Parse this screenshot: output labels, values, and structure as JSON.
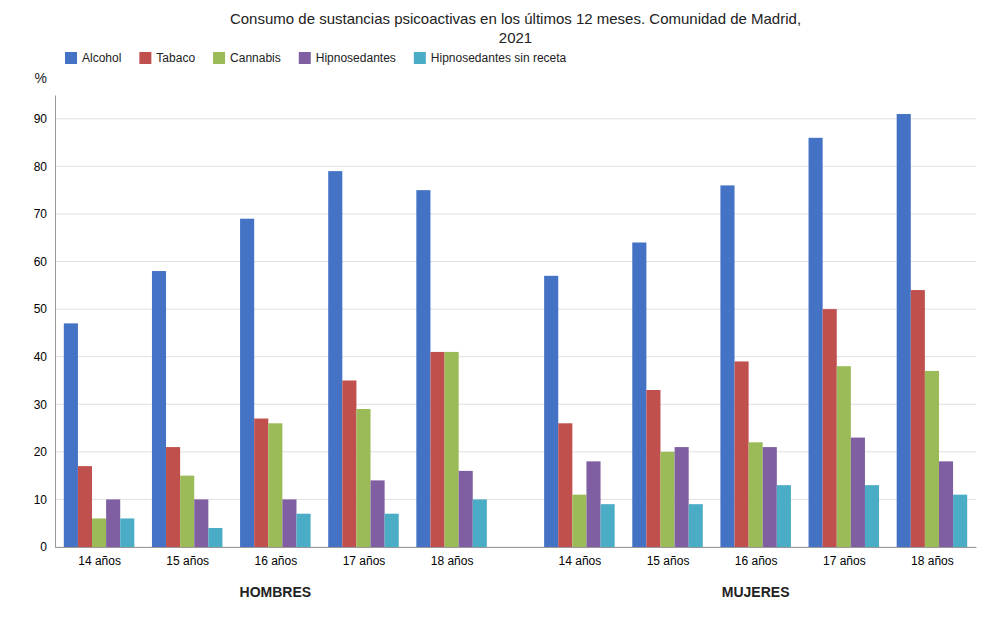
{
  "chart_data": {
    "type": "bar",
    "title": "Consumo de sustancias psicoactivas en los últimos 12 meses. Comunidad de Madrid,\n2021",
    "ylabel": "%",
    "categories": [
      "14 años",
      "15 años",
      "16 años",
      "17 años",
      "18 años",
      "14 años",
      "15 años",
      "16 años",
      "17 años",
      "18 años"
    ],
    "series": [
      {
        "name": "Alcohol",
        "color": "#4472C4",
        "values": [
          47,
          58,
          69,
          79,
          75,
          57,
          64,
          76,
          86,
          91
        ]
      },
      {
        "name": "Tabaco",
        "color": "#C0504D",
        "values": [
          17,
          21,
          27,
          35,
          41,
          26,
          33,
          39,
          50,
          54
        ]
      },
      {
        "name": "Cannabis",
        "color": "#9BBB59",
        "values": [
          6,
          15,
          26,
          29,
          41,
          11,
          20,
          22,
          38,
          37
        ]
      },
      {
        "name": "Hipnosedantes",
        "color": "#7F5FA2",
        "values": [
          10,
          10,
          10,
          14,
          16,
          18,
          21,
          21,
          23,
          18
        ]
      },
      {
        "name": "Hipnosedantes sin receta",
        "color": "#4BACC6",
        "values": [
          6,
          4,
          7,
          7,
          10,
          9,
          9,
          13,
          13,
          11
        ]
      }
    ],
    "ylim": [
      0,
      95
    ],
    "yticks": [
      0,
      10,
      20,
      30,
      40,
      50,
      60,
      70,
      80,
      90
    ],
    "grid": true,
    "legend": "top",
    "annotations": [
      "HOMBRES",
      "MUJERES"
    ]
  }
}
